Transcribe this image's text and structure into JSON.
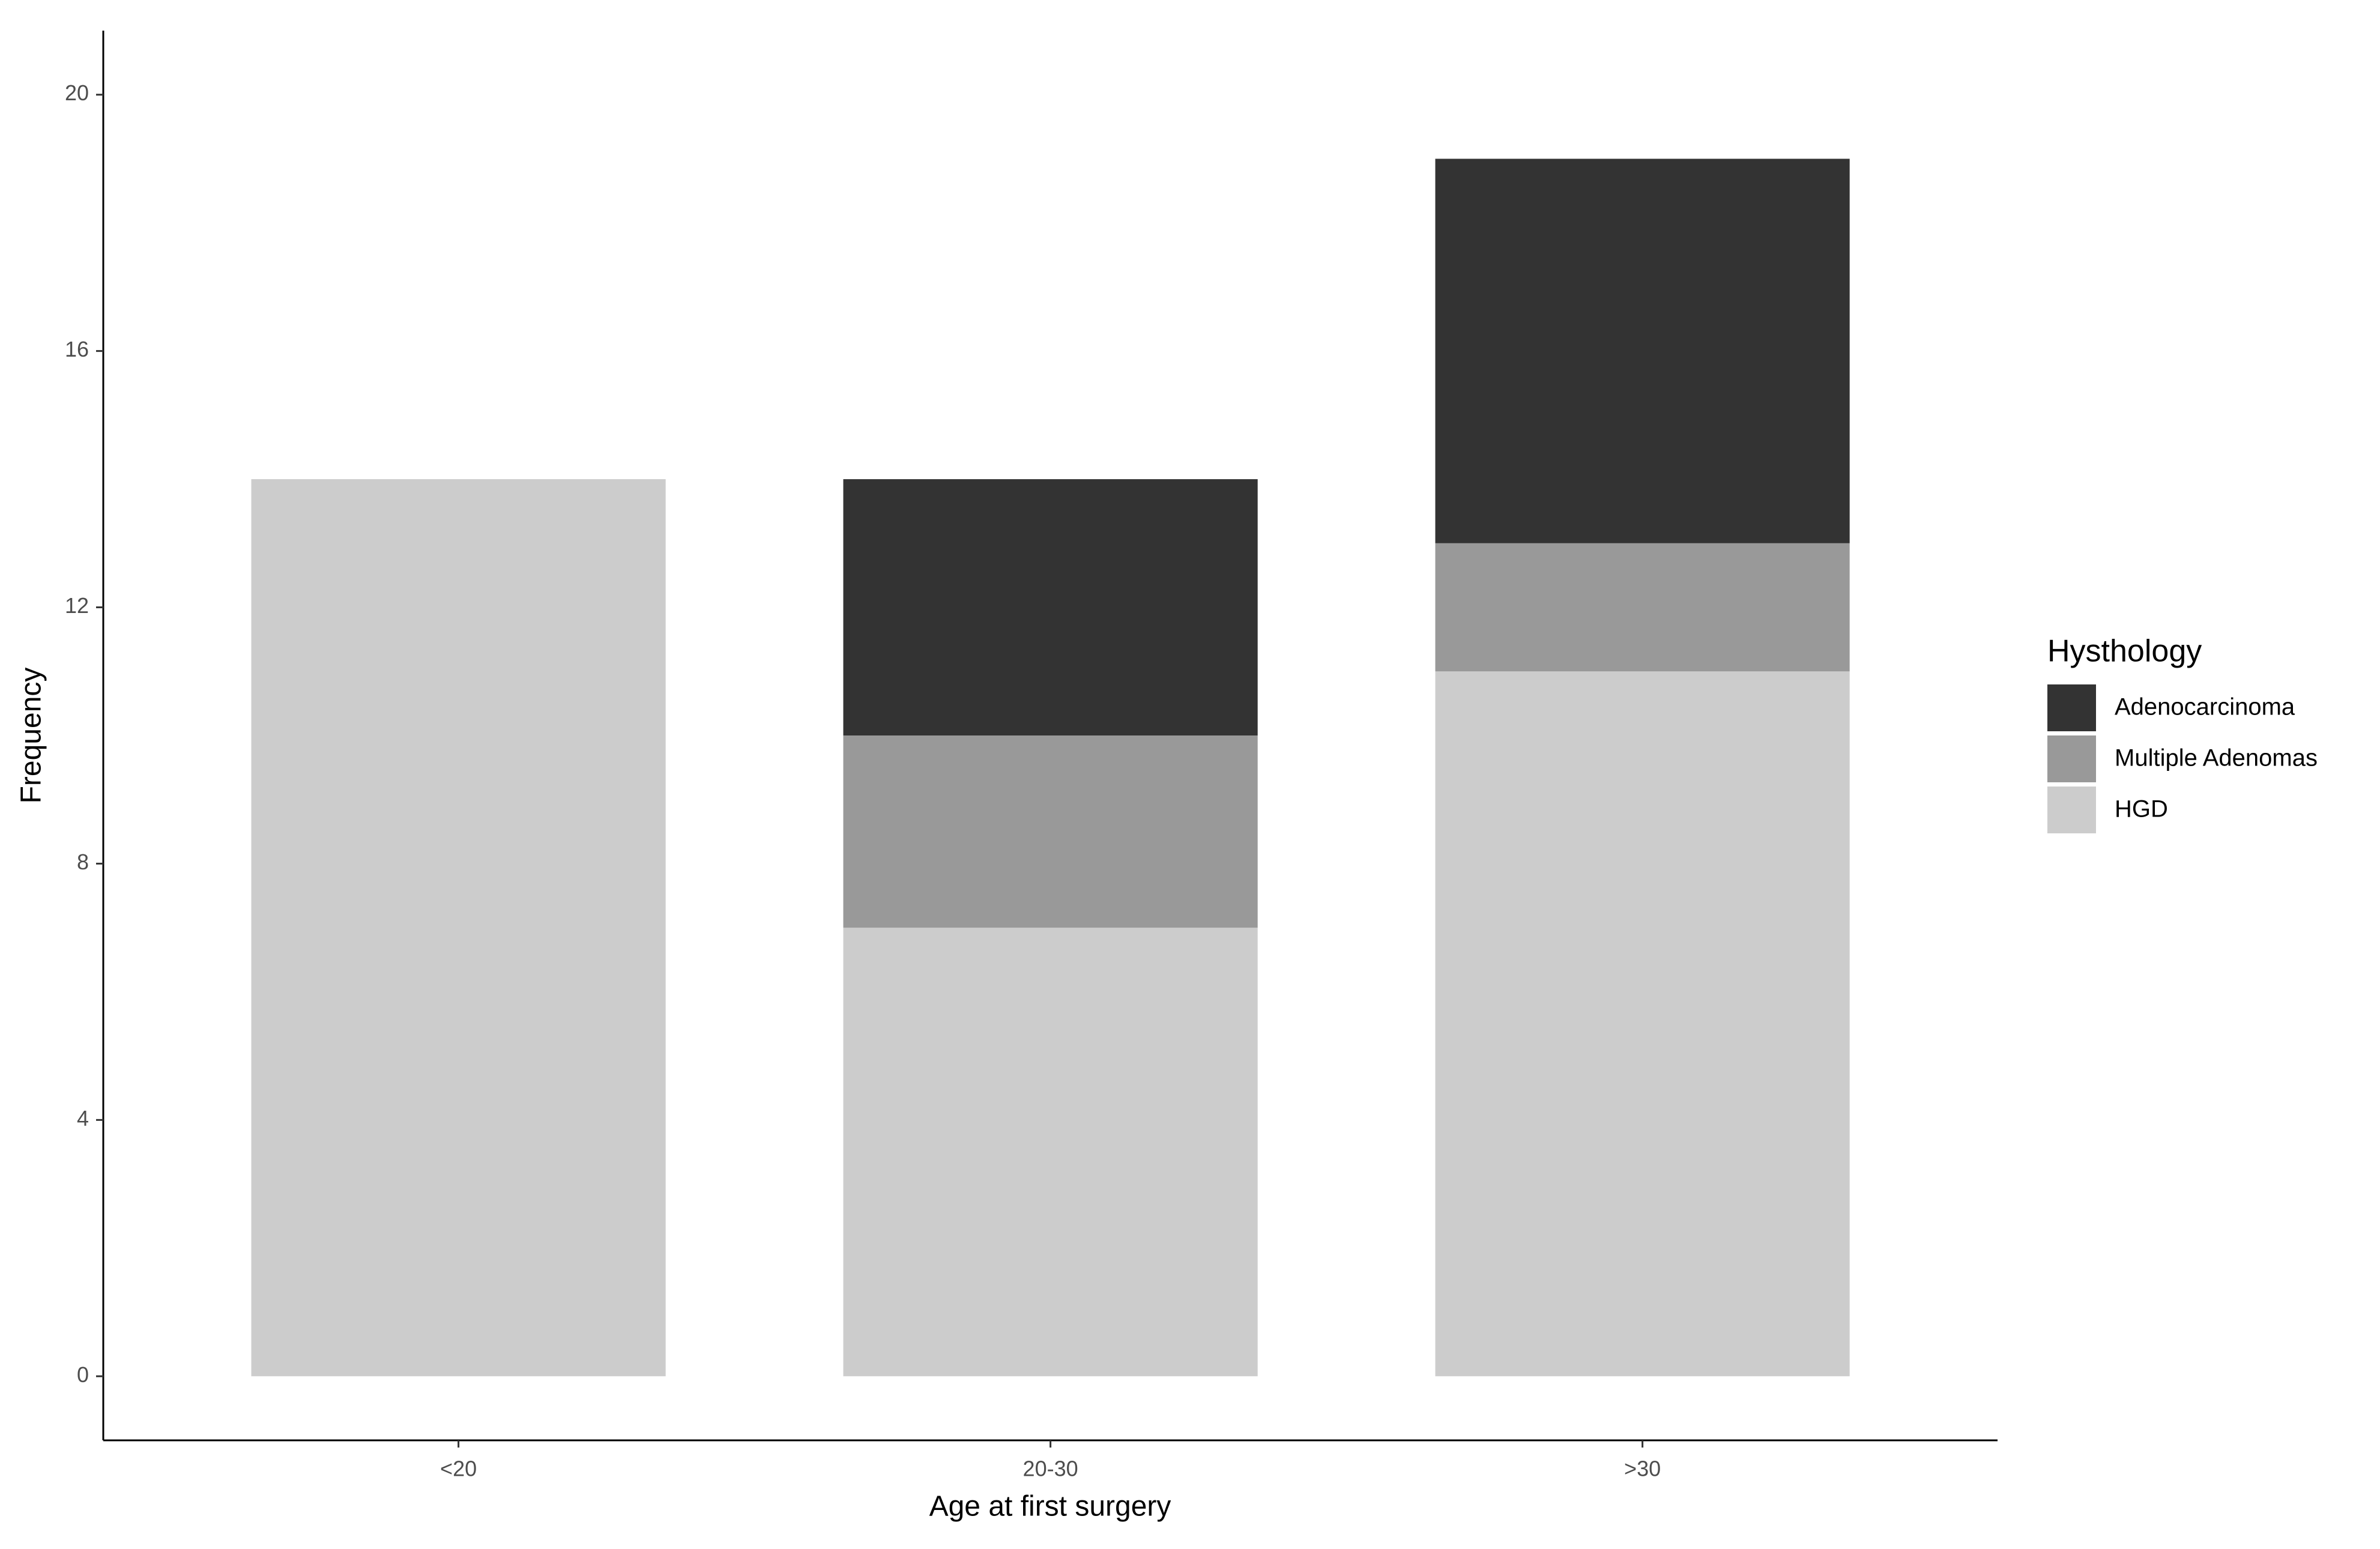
{
  "chart_data": {
    "type": "stacked_bar",
    "x_label": "Age at first surgery",
    "y_label": "Frequency",
    "legend_title": "Hysthology",
    "categories": [
      "<20",
      "20-30",
      ">30"
    ],
    "series": [
      {
        "name": "HGD",
        "color": "#cccccc",
        "values": [
          14,
          7,
          11
        ]
      },
      {
        "name": "Multiple Adenomas",
        "color": "#999999",
        "values": [
          0,
          3,
          2
        ]
      },
      {
        "name": "Adenocarcinoma",
        "color": "#333333",
        "values": [
          0,
          4,
          6
        ]
      }
    ],
    "ylim": [
      -1,
      21
    ],
    "yticks": [
      0,
      4,
      8,
      12,
      16,
      20
    ],
    "grid": false,
    "legend": "right"
  }
}
